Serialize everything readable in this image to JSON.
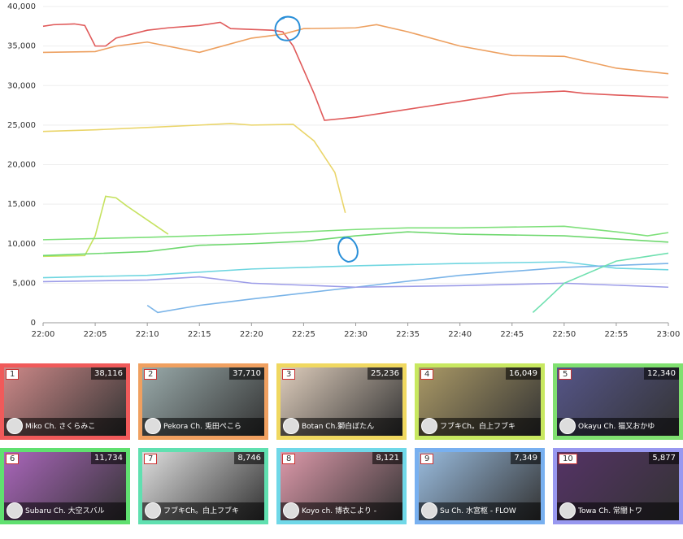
{
  "chart_data": {
    "type": "line",
    "xticks": [
      "22:00",
      "22:05",
      "22:10",
      "22:15",
      "22:20",
      "22:25",
      "22:30",
      "22:35",
      "22:40",
      "22:45",
      "22:50",
      "22:55",
      "23:00"
    ],
    "xlim": [
      "22:00",
      "23:00"
    ],
    "ylim": [
      0,
      40000
    ],
    "yticks": [
      0,
      {
        "value": 5000,
        "label": "5,000"
      },
      {
        "value": 10000,
        "label": "10,000"
      },
      {
        "value": 15000,
        "label": "15,000"
      },
      {
        "value": 20000,
        "label": "20,000"
      },
      {
        "value": 25000,
        "label": "25,000"
      },
      {
        "value": 30000,
        "label": "30,000"
      },
      {
        "value": 35000,
        "label": "35,000"
      },
      {
        "value": 40000,
        "label": "40,000"
      }
    ],
    "grid": true,
    "series": [
      {
        "color": "#e05a5a",
        "x": [
          "22:00",
          "22:01",
          "22:03",
          "22:04",
          "22:05",
          "22:06",
          "22:07",
          "22:10",
          "22:12",
          "22:15",
          "22:17",
          "22:18",
          "22:22",
          "22:23",
          "22:24",
          "22:25",
          "22:26",
          "22:27",
          "22:30",
          "22:35",
          "22:40",
          "22:45",
          "22:50",
          "22:52",
          "22:55",
          "23:00"
        ],
        "values": [
          37500,
          37700,
          37800,
          37600,
          35000,
          35000,
          36000,
          37000,
          37300,
          37600,
          38000,
          37200,
          37000,
          36800,
          35000,
          32000,
          29000,
          25600,
          26000,
          27000,
          28000,
          29000,
          29300,
          29000,
          28800,
          28500
        ]
      },
      {
        "color": "#eda060",
        "x": [
          "22:00",
          "22:05",
          "22:07",
          "22:10",
          "22:15",
          "22:20",
          "22:23",
          "22:25",
          "22:30",
          "22:32",
          "22:35",
          "22:40",
          "22:45",
          "22:50",
          "22:55",
          "23:00"
        ],
        "values": [
          34200,
          34300,
          35000,
          35500,
          34200,
          36000,
          36500,
          37200,
          37300,
          37700,
          36800,
          35000,
          33800,
          33700,
          32200,
          31500
        ]
      },
      {
        "color": "#ead56a",
        "x": [
          "22:00",
          "22:05",
          "22:10",
          "22:15",
          "22:18",
          "22:20",
          "22:24",
          "22:26",
          "22:28",
          "22:29"
        ],
        "values": [
          24200,
          24400,
          24700,
          25000,
          25200,
          25000,
          25100,
          23000,
          19000,
          13900
        ]
      },
      {
        "color": "#c6e260",
        "x": [
          "22:00",
          "22:04",
          "22:05",
          "22:06",
          "22:07",
          "22:08",
          "22:10",
          "22:12"
        ],
        "values": [
          8400,
          8500,
          11000,
          16000,
          15800,
          14800,
          13000,
          11200
        ]
      },
      {
        "color": "#7ee07a",
        "x": [
          "22:00",
          "22:10",
          "22:20",
          "22:30",
          "22:35",
          "22:40",
          "22:50",
          "22:55",
          "22:58",
          "23:00"
        ],
        "values": [
          10500,
          10800,
          11200,
          11800,
          12000,
          12000,
          12200,
          11500,
          11000,
          11400
        ]
      },
      {
        "color": "#6fd86f",
        "x": [
          "22:00",
          "22:10",
          "22:15",
          "22:20",
          "22:25",
          "22:30",
          "22:35",
          "22:40",
          "22:50",
          "23:00"
        ],
        "values": [
          8500,
          9000,
          9800,
          10000,
          10300,
          11000,
          11500,
          11200,
          11000,
          10200
        ]
      },
      {
        "color": "#6fd6e0",
        "x": [
          "22:00",
          "22:10",
          "22:20",
          "22:30",
          "22:40",
          "22:50",
          "22:55",
          "23:00"
        ],
        "values": [
          5700,
          6000,
          6800,
          7200,
          7500,
          7700,
          6900,
          6700
        ]
      },
      {
        "color": "#7ab4e8",
        "x": [
          "22:10",
          "22:11",
          "22:15",
          "22:20",
          "22:30",
          "22:40",
          "22:50",
          "23:00"
        ],
        "values": [
          2200,
          1300,
          2200,
          3000,
          4500,
          6000,
          7000,
          7500
        ]
      },
      {
        "color": "#9c9ce8",
        "x": [
          "22:00",
          "22:10",
          "22:15",
          "22:20",
          "22:30",
          "22:40",
          "22:50",
          "23:00"
        ],
        "values": [
          5200,
          5400,
          5800,
          5000,
          4500,
          4700,
          5000,
          4500
        ]
      },
      {
        "color": "#6fe0b0",
        "x": [
          "22:47",
          "22:48",
          "22:50",
          "22:55",
          "23:00"
        ],
        "values": [
          1300,
          2500,
          5000,
          7800,
          8800
        ]
      }
    ]
  },
  "cards": [
    {
      "rank": "1",
      "viewers": "38,116",
      "name": "Miko Ch. さくらみこ",
      "color": "#f05a5a"
    },
    {
      "rank": "2",
      "viewers": "37,710",
      "name": "Pekora Ch. 兎田ぺこら",
      "color": "#f0a060"
    },
    {
      "rank": "3",
      "viewers": "25,236",
      "name": "Botan Ch.獅白ぼたん",
      "color": "#f0d860"
    },
    {
      "rank": "4",
      "viewers": "16,049",
      "name": "フブキCh。白上フブキ",
      "color": "#c8e860"
    },
    {
      "rank": "5",
      "viewers": "12,340",
      "name": "Okayu Ch. 猫又おかゆ",
      "color": "#80e070"
    },
    {
      "rank": "6",
      "viewers": "11,734",
      "name": "Subaru Ch. 大空スバル",
      "color": "#60e070"
    },
    {
      "rank": "7",
      "viewers": "8,746",
      "name": "フブキCh。白上フブキ",
      "color": "#60e0b0"
    },
    {
      "rank": "8",
      "viewers": "8,121",
      "name": "Koyo ch. 博衣こより -",
      "color": "#70d8e8"
    },
    {
      "rank": "9",
      "viewers": "7,349",
      "name": "Su Ch. 水宮枢 - FLOW",
      "color": "#78b0f0"
    },
    {
      "rank": "10",
      "viewers": "5,877",
      "name": "Towa Ch. 常闇トワ",
      "color": "#9898f0"
    }
  ]
}
